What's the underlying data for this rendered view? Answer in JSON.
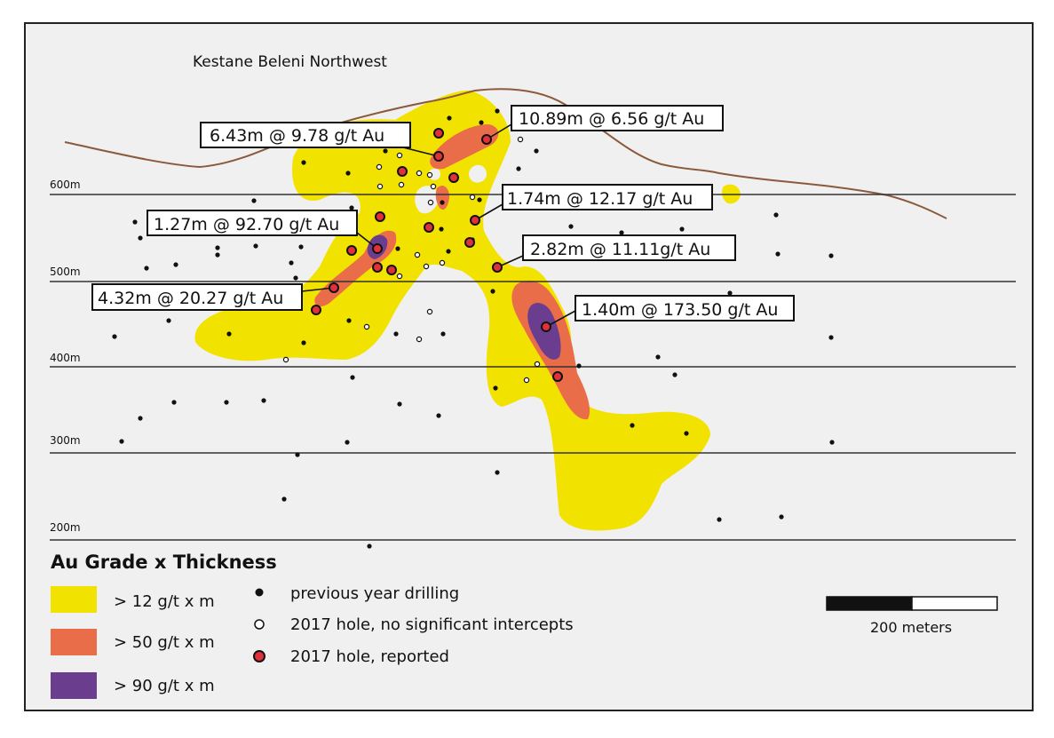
{
  "title": "Kestane Beleni Northwest",
  "elevation_levels": [
    {
      "label": "600m",
      "value": 600
    },
    {
      "label": "500m",
      "value": 500
    },
    {
      "label": "400m",
      "value": 400
    },
    {
      "label": "300m",
      "value": 300
    },
    {
      "label": "200m",
      "value": 200
    }
  ],
  "callouts": [
    {
      "text": "10.89m @ 6.56 g/t Au"
    },
    {
      "text": "6.43m @ 9.78 g/t Au"
    },
    {
      "text": "1.74m @ 12.17 g/t Au"
    },
    {
      "text": "1.27m @ 92.70 g/t Au"
    },
    {
      "text": "2.82m @ 11.11g/t Au"
    },
    {
      "text": "4.32m @ 20.27 g/t Au"
    },
    {
      "text": "1.40m @ 173.50 g/t Au"
    }
  ],
  "legend": {
    "title": "Au Grade x Thickness",
    "grades": [
      {
        "label": "> 12 g/t x m",
        "color": "#f2e200"
      },
      {
        "label": "> 50 g/t x m",
        "color": "#ea6d4a"
      },
      {
        "label": "> 90 g/t x m",
        "color": "#6b3d8f"
      }
    ],
    "holes": [
      {
        "label": "previous year drilling",
        "type": "previous"
      },
      {
        "label": "2017 hole, no significant intercepts",
        "type": "no-intercept"
      },
      {
        "label": "2017 hole, reported",
        "type": "reported"
      }
    ]
  },
  "scale_bar": {
    "label": "200 meters"
  },
  "colors": {
    "topography": "#8b5a3c",
    "reported_hole": "#e0303a"
  }
}
